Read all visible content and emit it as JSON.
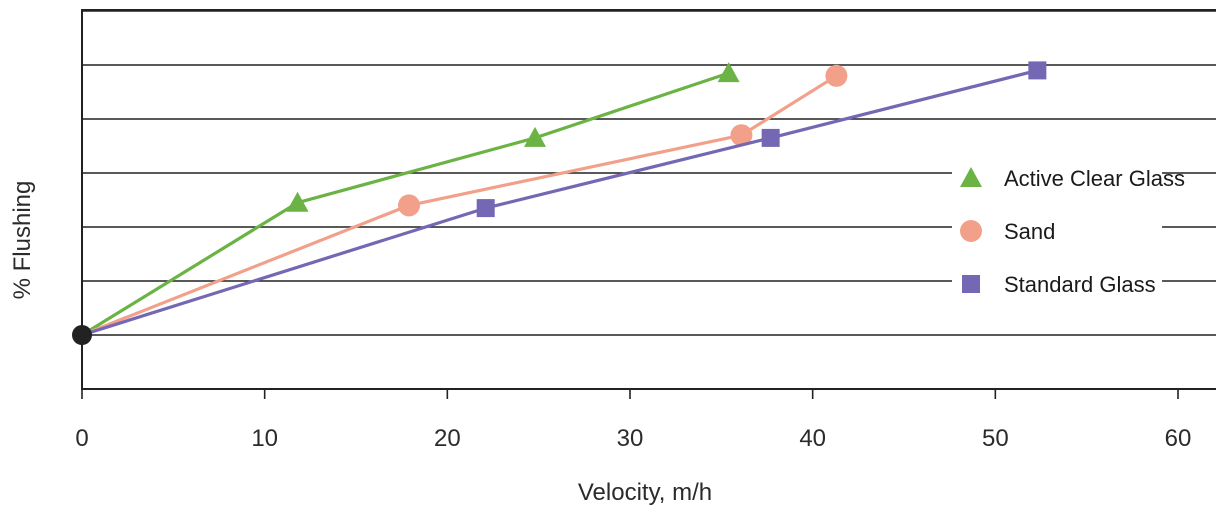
{
  "chart_data": {
    "type": "line",
    "title": "",
    "xlabel": "Velocity, m/h",
    "ylabel": "% Flushing",
    "xlim": [
      0,
      60
    ],
    "x_ticks": [
      0,
      10,
      20,
      30,
      40,
      50,
      60
    ],
    "ylim": [
      0,
      6
    ],
    "y_ticks_shown": false,
    "grid": "horizontal",
    "legend_position": "right",
    "origin_marker_color": "#222222",
    "series": [
      {
        "name": "Active Clear Glass",
        "color": "#6ab344",
        "marker": "triangle",
        "points": [
          {
            "x": 0,
            "y": 0
          },
          {
            "x": 11.8,
            "y": 2.45
          },
          {
            "x": 24.8,
            "y": 3.65
          },
          {
            "x": 35.4,
            "y": 4.85
          }
        ]
      },
      {
        "name": "Sand",
        "color": "#f2a08a",
        "marker": "circle",
        "points": [
          {
            "x": 0,
            "y": 0
          },
          {
            "x": 17.9,
            "y": 2.4
          },
          {
            "x": 36.1,
            "y": 3.7
          },
          {
            "x": 41.3,
            "y": 4.8
          }
        ]
      },
      {
        "name": "Standard Glass",
        "color": "#7468b4",
        "marker": "square",
        "points": [
          {
            "x": 0,
            "y": 0
          },
          {
            "x": 22.1,
            "y": 2.35
          },
          {
            "x": 37.7,
            "y": 3.65
          },
          {
            "x": 52.3,
            "y": 4.9
          }
        ]
      }
    ]
  }
}
